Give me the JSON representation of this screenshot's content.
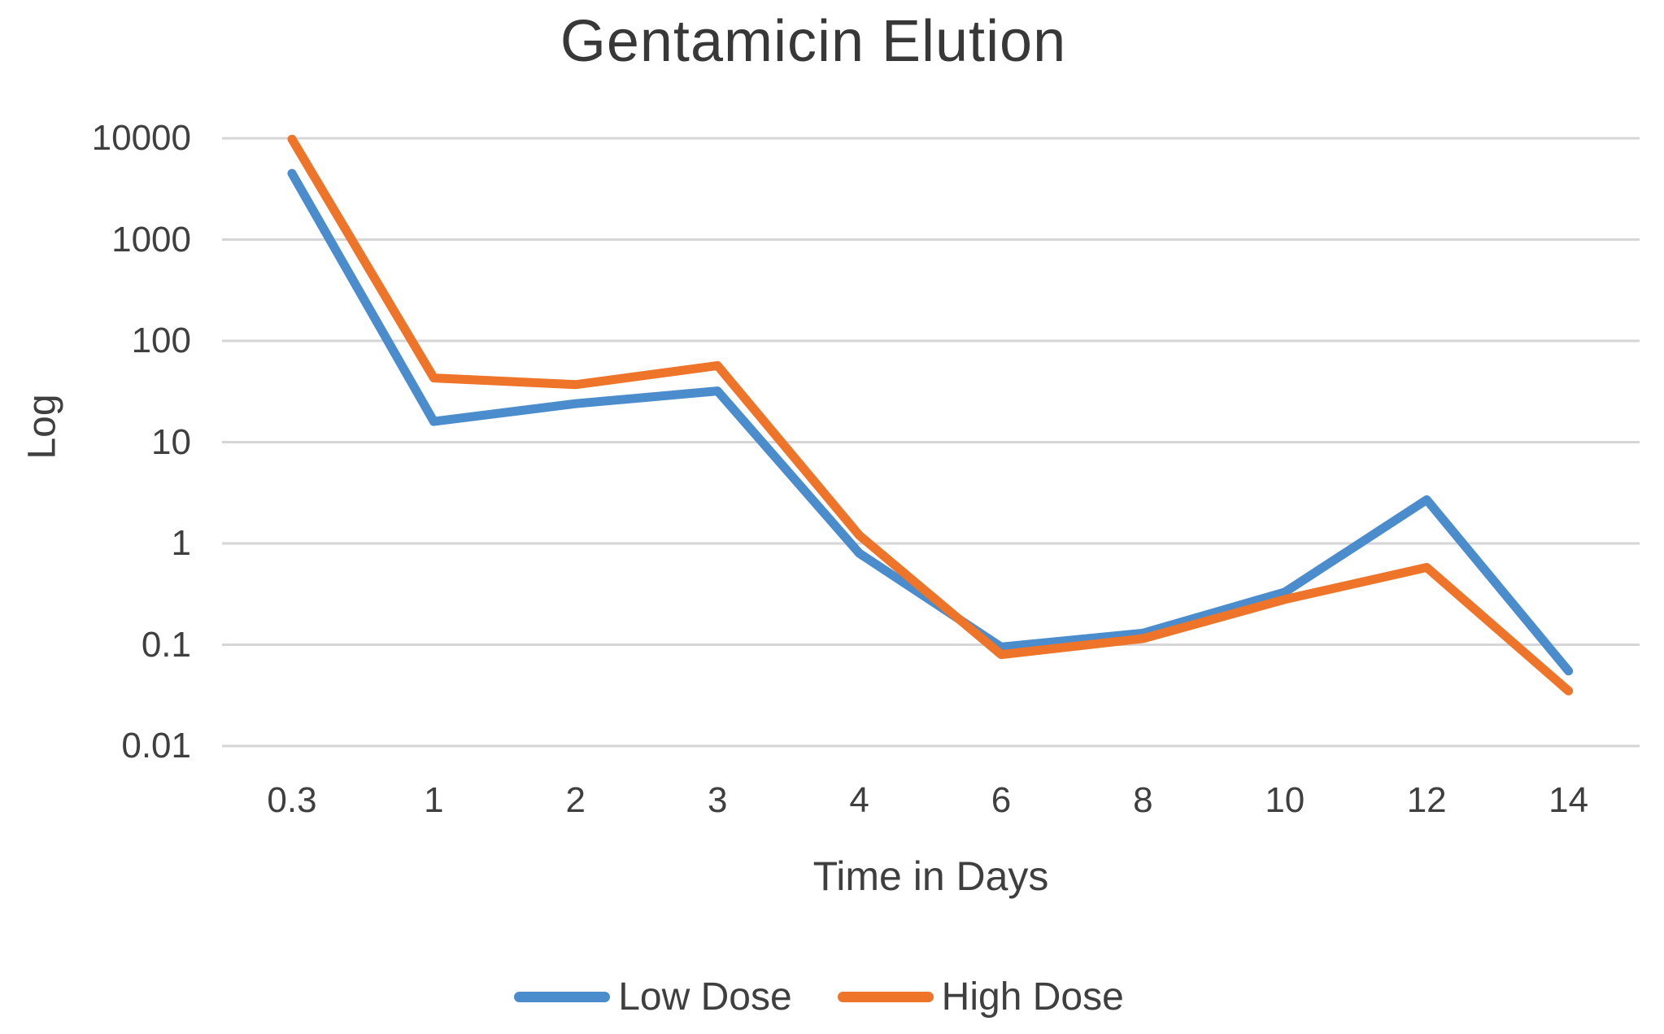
{
  "chart_data": {
    "type": "line",
    "title": "Gentamicin Elution",
    "xlabel": "Time in Days",
    "ylabel": "Log",
    "y_scale": "log10",
    "ylim": [
      0.01,
      10000
    ],
    "y_ticks": [
      "10000",
      "1000",
      "100",
      "10",
      "1",
      "0.1",
      "0.01"
    ],
    "categories": [
      "0.3",
      "1",
      "2",
      "3",
      "4",
      "6",
      "8",
      "10",
      "12",
      "14"
    ],
    "series": [
      {
        "name": "Low Dose",
        "color": "#4A8CCC",
        "values": [
          4500,
          16,
          24,
          32,
          0.8,
          0.095,
          0.13,
          0.33,
          2.7,
          0.055
        ]
      },
      {
        "name": "High Dose",
        "color": "#ED7428",
        "values": [
          9800,
          43,
          37,
          57,
          1.2,
          0.08,
          0.115,
          0.28,
          0.58,
          0.035
        ]
      }
    ],
    "grid": "horizontal",
    "gridline_color": "#D6D6D6",
    "text_color": "#3F3F3F",
    "legend_position": "bottom"
  }
}
